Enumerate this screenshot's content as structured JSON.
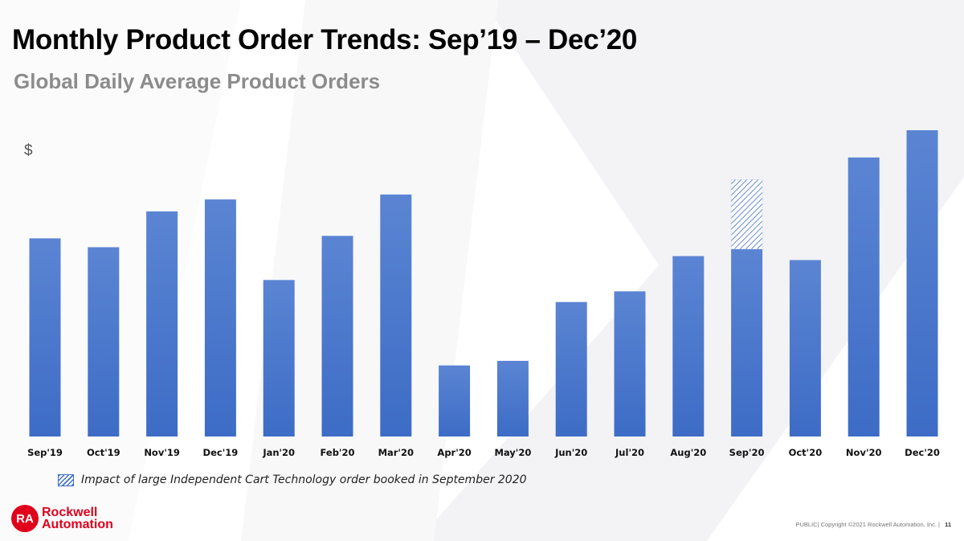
{
  "slide": {
    "title": "Monthly Product Order Trends: Sep’19 – Dec’20",
    "subtitle": "Global Daily Average Product Orders",
    "logo": {
      "mark": "RA",
      "line1": "Rockwell",
      "line2": "Automation"
    },
    "footer": {
      "copyright": "PUBLIC| Copyright ©2021 Rockwell Automation, Inc. |",
      "page": "11"
    },
    "legend": {
      "label": "Impact of large Independent Cart Technology order booked in September 2020"
    }
  },
  "colors": {
    "bar": "#4170c9",
    "bar_light": "#5b85d3",
    "hatch": "#3f6fc8",
    "brand_red": "#e0001b"
  },
  "chart_data": {
    "type": "bar",
    "ylabel": "$",
    "ylim": [
      0,
      100
    ],
    "grid": false,
    "legend_position": "bottom-left",
    "categories": [
      "Sep'19",
      "Oct'19",
      "Nov'19",
      "Dec'19",
      "Jan'20",
      "Feb'20",
      "Mar'20",
      "Apr'20",
      "May'20",
      "Jun'20",
      "Jul'20",
      "Aug'20",
      "Sep'20",
      "Oct'20",
      "Nov'20",
      "Dec'20"
    ],
    "series": [
      {
        "values": [
          64.7,
          61.8,
          73.5,
          77.4,
          51.1,
          65.5,
          79.0,
          23.2,
          24.7,
          43.9,
          47.4,
          58.9,
          61.2,
          57.6,
          91.1,
          100.0
        ]
      },
      {
        "name": "Impact of large Independent Cart Technology order booked in September 2020",
        "pattern": "hatched",
        "values": [
          0,
          0,
          0,
          0,
          0,
          0,
          0,
          0,
          0,
          0,
          0,
          0,
          22.7,
          0,
          0,
          0
        ]
      }
    ]
  }
}
